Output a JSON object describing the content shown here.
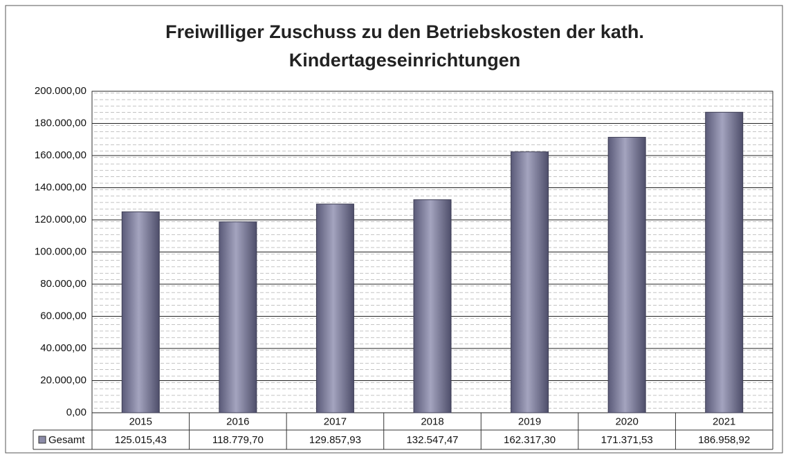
{
  "chart_data": {
    "type": "bar",
    "title": [
      "Freiwilliger Zuschuss zu den Betriebskosten der kath.",
      "Kindertageseinrichtungen"
    ],
    "categories": [
      "2015",
      "2016",
      "2017",
      "2018",
      "2019",
      "2020",
      "2021"
    ],
    "series": [
      {
        "name": "Gesamt",
        "color": "#8c8ca8",
        "values": [
          125015.43,
          118779.7,
          129857.93,
          132547.47,
          162317.3,
          171371.53,
          186958.92
        ],
        "value_labels": [
          "125.015,43",
          "118.779,70",
          "129.857,93",
          "132.547,47",
          "162.317,30",
          "171.371,53",
          "186.958,92"
        ]
      }
    ],
    "ylim": [
      0,
      200000
    ],
    "yticks": [
      {
        "value": 0,
        "label": "0,00"
      },
      {
        "value": 20000,
        "label": "20.000,00"
      },
      {
        "value": 40000,
        "label": "40.000,00"
      },
      {
        "value": 60000,
        "label": "60.000,00"
      },
      {
        "value": 80000,
        "label": "80.000,00"
      },
      {
        "value": 100000,
        "label": "100.000,00"
      },
      {
        "value": 120000,
        "label": "120.000,00"
      },
      {
        "value": 140000,
        "label": "140.000,00"
      },
      {
        "value": 160000,
        "label": "160.000,00"
      },
      {
        "value": 180000,
        "label": "180.000,00"
      },
      {
        "value": 200000,
        "label": "200.000,00"
      }
    ],
    "grid": true
  }
}
